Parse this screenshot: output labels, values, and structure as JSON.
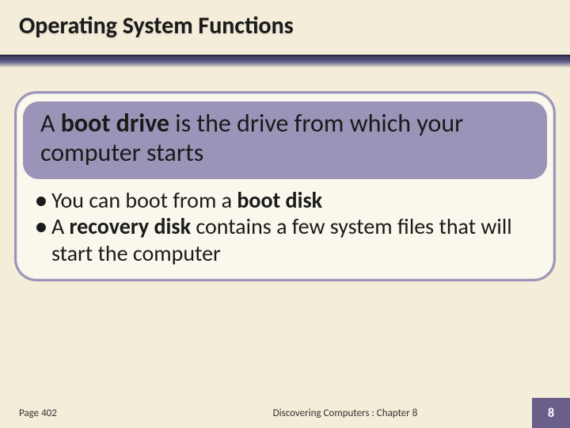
{
  "title": "Operating System Functions",
  "headline": {
    "pre": "A ",
    "bold": "boot drive",
    "post": " is the drive from which your computer starts"
  },
  "bullets": [
    {
      "pre": "You can boot from a ",
      "bold": "boot disk",
      "post": ""
    },
    {
      "pre": "A ",
      "bold": "recovery disk",
      "post": " contains a few system files that will start the computer"
    }
  ],
  "footer": {
    "page_ref": "Page 402",
    "center": "Discovering Computers : Chapter 8",
    "page_num": "8"
  },
  "colors": {
    "background": "#f3edd9",
    "pill": "#9b93b8",
    "border": "#9b93b8",
    "pagebox": "#6a5f8a"
  }
}
